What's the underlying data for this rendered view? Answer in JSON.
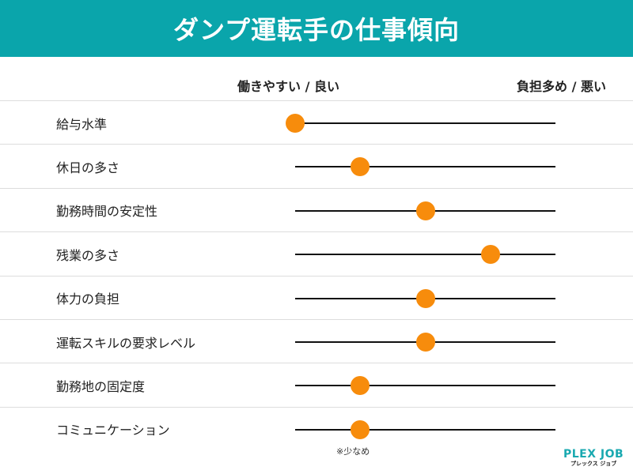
{
  "header": {
    "title": "ダンプ運転手の仕事傾向",
    "color": "#0aa5ab"
  },
  "axis": {
    "left_label": "働きやすい / 良い",
    "right_label": "負担多め / 悪い",
    "scale_max": 4
  },
  "dot_color": "#f78c0c",
  "rows": [
    {
      "label": "給与水準",
      "value": 0
    },
    {
      "label": "休日の多さ",
      "value": 1
    },
    {
      "label": "勤務時間の安定性",
      "value": 2
    },
    {
      "label": "残業の多さ",
      "value": 3
    },
    {
      "label": "体力の負担",
      "value": 2
    },
    {
      "label": "運転スキルの要求レベル",
      "value": 2
    },
    {
      "label": "勤務地の固定度",
      "value": 1
    },
    {
      "label": "コミュニケーション",
      "value": 1
    }
  ],
  "note": "※少なめ",
  "logo": {
    "main": "PLEX JOB",
    "sub": "プレックス ジョブ"
  }
}
